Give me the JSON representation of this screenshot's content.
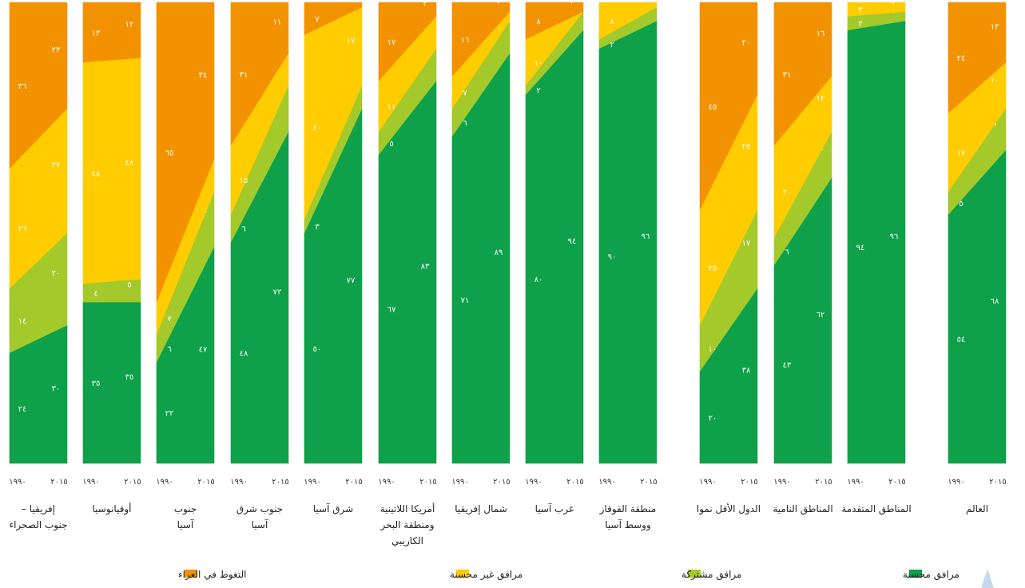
{
  "chart_data": {
    "type": "area",
    "layout": "paired 100% stacked columns, 1990 to 2015, one column per region",
    "years": [
      "١٩٩٠",
      "٢٠١٥"
    ],
    "categories_order_bottom_to_top": [
      "improved",
      "shared",
      "unimproved",
      "open"
    ],
    "colors": {
      "improved": "#0fa04a",
      "shared": "#a3c92a",
      "unimproved": "#ffcc00",
      "open": "#f39200"
    },
    "legend": [
      {
        "key": "improved",
        "label": "مرافق محسنة"
      },
      {
        "key": "shared",
        "label": "مرافق مشتركة"
      },
      {
        "key": "unimproved",
        "label": "مرافق غير محسنة"
      },
      {
        "key": "open",
        "label": "التغوط في العراء"
      }
    ],
    "regions": [
      {
        "name": "العالم",
        "y1990": {
          "improved": 54,
          "shared": 5,
          "unimproved": 17,
          "open": 24
        },
        "y2015": {
          "improved": 68,
          "shared": 9,
          "unimproved": 10,
          "open": 13
        },
        "labels1990": {
          "improved": "٥٤",
          "shared": "٥",
          "unimproved": "١٧",
          "open": "٢٤"
        },
        "labels2015": {
          "improved": "٦٨",
          "shared": "٩",
          "unimproved": "١٠",
          "open": "١٣"
        }
      },
      {
        "name": "المناطق المتقدمة",
        "y1990": {
          "improved": 94,
          "shared": 3,
          "unimproved": 3,
          "open": 0
        },
        "y2015": {
          "improved": 96,
          "shared": 2,
          "unimproved": 2,
          "open": 0
        },
        "labels1990": {
          "improved": "٩٤",
          "shared": "٣",
          "unimproved": "٣",
          "open": ""
        },
        "labels2015": {
          "improved": "٩٦",
          "shared": "٢",
          "unimproved": "٢",
          "open": ""
        }
      },
      {
        "name": "المناطق النامية",
        "y1990": {
          "improved": 43,
          "shared": 6,
          "unimproved": 20,
          "open": 31
        },
        "y2015": {
          "improved": 62,
          "shared": 10,
          "unimproved": 12,
          "open": 16
        },
        "labels1990": {
          "improved": "٤٣",
          "shared": "٦",
          "unimproved": "٢٠",
          "open": "٣١"
        },
        "labels2015": {
          "improved": "٦٢",
          "shared": "١٠",
          "unimproved": "١٢",
          "open": "١٦"
        }
      },
      {
        "name": "الدول الأقل نموا",
        "y1990": {
          "improved": 20,
          "shared": 10,
          "unimproved": 25,
          "open": 45
        },
        "y2015": {
          "improved": 38,
          "shared": 17,
          "unimproved": 25,
          "open": 20
        },
        "labels1990": {
          "improved": "٢٠",
          "shared": "١٠",
          "unimproved": "٢٥",
          "open": "٤٥"
        },
        "labels2015": {
          "improved": "٣٨",
          "shared": "١٧",
          "unimproved": "٢٥",
          "open": "٢٠"
        }
      },
      {
        "name": "منطقة القوقاز ووسط آسيا",
        "y1990": {
          "improved": 90,
          "shared": 2,
          "unimproved": 8,
          "open": 0
        },
        "y2015": {
          "improved": 96,
          "shared": 3,
          "unimproved": 1,
          "open": 0
        },
        "labels1990": {
          "improved": "٩٠",
          "shared": "٢",
          "unimproved": "٨",
          "open": ""
        },
        "labels2015": {
          "improved": "٩٦",
          "shared": "٣",
          "unimproved": "١",
          "open": ""
        }
      },
      {
        "name": "غرب آسيا",
        "y1990": {
          "improved": 80,
          "shared": 2,
          "unimproved": 10,
          "open": 8
        },
        "y2015": {
          "improved": 94,
          "shared": 4,
          "unimproved": 0,
          "open": 2
        },
        "labels1990": {
          "improved": "٨٠",
          "shared": "٢",
          "unimproved": "١٠",
          "open": "٨"
        },
        "labels2015": {
          "improved": "٩٤",
          "shared": "٤",
          "unimproved": "",
          "open": "٢"
        }
      },
      {
        "name": "شمال إفريقيا",
        "y1990": {
          "improved": 71,
          "shared": 6,
          "unimproved": 7,
          "open": 16
        },
        "y2015": {
          "improved": 89,
          "shared": 7,
          "unimproved": 2,
          "open": 2
        },
        "labels1990": {
          "improved": "٧١",
          "shared": "٦",
          "unimproved": "٧",
          "open": "١٦"
        },
        "labels2015": {
          "improved": "٨٩",
          "shared": "٧",
          "unimproved": "٢",
          "open": "٢"
        }
      },
      {
        "name": "أمريكا اللاتينية ومنطقة البحر الكاريبي",
        "y1990": {
          "improved": 67,
          "shared": 5,
          "unimproved": 11,
          "open": 17
        },
        "y2015": {
          "improved": 83,
          "shared": 7,
          "unimproved": 7,
          "open": 3
        },
        "labels1990": {
          "improved": "٦٧",
          "shared": "٥",
          "unimproved": "١١",
          "open": "١٧"
        },
        "labels2015": {
          "improved": "٨٣",
          "shared": "٧",
          "unimproved": "٧",
          "open": "٣"
        }
      },
      {
        "name": "شرق آسيا",
        "y1990": {
          "improved": 50,
          "shared": 3,
          "unimproved": 40,
          "open": 7
        },
        "y2015": {
          "improved": 77,
          "shared": 5,
          "unimproved": 17,
          "open": 1
        },
        "labels1990": {
          "improved": "٥٠",
          "shared": "٣",
          "unimproved": "٤٠",
          "open": "٧"
        },
        "labels2015": {
          "improved": "٧٧",
          "shared": "٥",
          "unimproved": "١٧",
          "open": "١"
        }
      },
      {
        "name": "جنوب شرق آسيا",
        "y1990": {
          "improved": 48,
          "shared": 6,
          "unimproved": 15,
          "open": 31
        },
        "y2015": {
          "improved": 72,
          "shared": 10,
          "unimproved": 7,
          "open": 11
        },
        "labels1990": {
          "improved": "٤٨",
          "shared": "٦",
          "unimproved": "١٥",
          "open": "٣١"
        },
        "labels2015": {
          "improved": "٧٢",
          "shared": "١٠",
          "unimproved": "٧",
          "open": "١١"
        }
      },
      {
        "name": "جنوب آسيا",
        "y1990": {
          "improved": 22,
          "shared": 6,
          "unimproved": 7,
          "open": 65
        },
        "y2015": {
          "improved": 47,
          "shared": 12,
          "unimproved": 7,
          "open": 34
        },
        "labels1990": {
          "improved": "٢٢",
          "shared": "٦",
          "unimproved": "٧",
          "open": "٦٥"
        },
        "labels2015": {
          "improved": "٤٧",
          "shared": "١٢",
          "unimproved": "٧",
          "open": "٣٤"
        }
      },
      {
        "name": "أوقيانوسيا",
        "y1990": {
          "improved": 35,
          "shared": 4,
          "unimproved": 48,
          "open": 13
        },
        "y2015": {
          "improved": 35,
          "shared": 5,
          "unimproved": 48,
          "open": 12
        },
        "labels1990": {
          "improved": "٣٥",
          "shared": "٤",
          "unimproved": "٤٨",
          "open": "١٣"
        },
        "labels2015": {
          "improved": "٣٥",
          "shared": "٥",
          "unimproved": "٤٨",
          "open": "١٢"
        }
      },
      {
        "name": "إفريقيا – جنوب الصحراء",
        "y1990": {
          "improved": 24,
          "shared": 14,
          "unimproved": 26,
          "open": 36
        },
        "y2015": {
          "improved": 30,
          "shared": 20,
          "unimproved": 27,
          "open": 23
        },
        "labels1990": {
          "improved": "٢٤",
          "shared": "١٤",
          "unimproved": "٢٦",
          "open": "٣٦"
        },
        "labels2015": {
          "improved": "٣٠",
          "shared": "٢٠",
          "unimproved": "٢٧",
          "open": "٢٣"
        }
      }
    ]
  }
}
